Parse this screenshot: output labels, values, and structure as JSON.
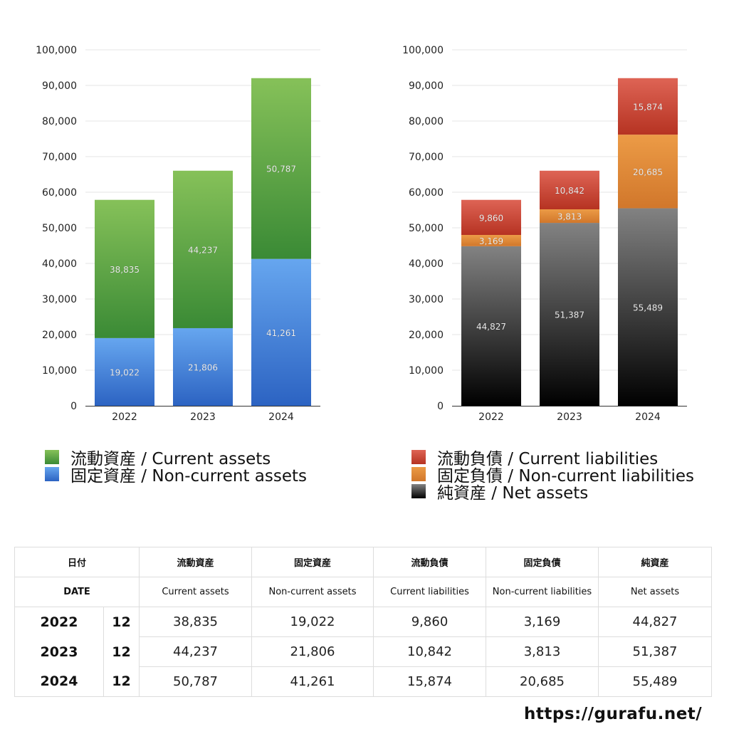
{
  "chart_data": [
    {
      "type": "bar",
      "stacked": true,
      "categories": [
        "2022",
        "2023",
        "2024"
      ],
      "ylim": [
        0,
        100000
      ],
      "yticks": [
        "0",
        "10,000",
        "20,000",
        "30,000",
        "40,000",
        "50,000",
        "60,000",
        "70,000",
        "80,000",
        "90,000",
        "100,000"
      ],
      "grid": true,
      "legend_position": "bottom",
      "series": [
        {
          "name": "固定資産 / Non-current assets",
          "values": [
            19022,
            21806,
            41261
          ],
          "labels": [
            "19,022",
            "21,806",
            "41,261"
          ],
          "color": "#3f7fdc"
        },
        {
          "name": "流動資産 / Current assets",
          "values": [
            38835,
            44237,
            50787
          ],
          "labels": [
            "38,835",
            "44,237",
            "50,787"
          ],
          "color": "#5fa446"
        }
      ]
    },
    {
      "type": "bar",
      "stacked": true,
      "categories": [
        "2022",
        "2023",
        "2024"
      ],
      "ylim": [
        0,
        100000
      ],
      "yticks": [
        "0",
        "10,000",
        "20,000",
        "30,000",
        "40,000",
        "50,000",
        "60,000",
        "70,000",
        "80,000",
        "90,000",
        "100,000"
      ],
      "grid": true,
      "legend_position": "bottom",
      "series": [
        {
          "name": "純資産 / Net assets",
          "values": [
            44827,
            51387,
            55489
          ],
          "labels": [
            "44,827",
            "51,387",
            "55,489"
          ],
          "color": "#333333"
        },
        {
          "name": "固定負債 / Non-current liabilities",
          "values": [
            3169,
            3813,
            20685
          ],
          "labels": [
            "3,169",
            "3,813",
            "20,685"
          ],
          "color": "#e08a38"
        },
        {
          "name": "流動負債 / Current liabilities",
          "values": [
            9860,
            10842,
            15874
          ],
          "labels": [
            "9,860",
            "10,842",
            "15,874"
          ],
          "color": "#cc4a3a"
        }
      ]
    }
  ],
  "legend1": [
    "流動資産 / Current assets",
    "固定資産 / Non-current assets"
  ],
  "legend2": [
    "流動負債 / Current liabilities",
    "固定負債 / Non-current liabilities",
    "純資産 / Net assets"
  ],
  "table": {
    "header_jp": [
      "日付",
      "流動資産",
      "固定資産",
      "流動負債",
      "固定負債",
      "純資産"
    ],
    "header_en": [
      "DATE",
      "Current assets",
      "Non-current assets",
      "Current liabilities",
      "Non-current liabilities",
      "Net assets"
    ],
    "rows": [
      {
        "year": "2022",
        "month": "12",
        "values": [
          "38,835",
          "19,022",
          "9,860",
          "3,169",
          "44,827"
        ]
      },
      {
        "year": "2023",
        "month": "12",
        "values": [
          "44,237",
          "21,806",
          "10,842",
          "3,813",
          "51,387"
        ]
      },
      {
        "year": "2024",
        "month": "12",
        "values": [
          "50,787",
          "41,261",
          "15,874",
          "20,685",
          "55,489"
        ]
      }
    ]
  },
  "footer_url": "https://gurafu.net/"
}
